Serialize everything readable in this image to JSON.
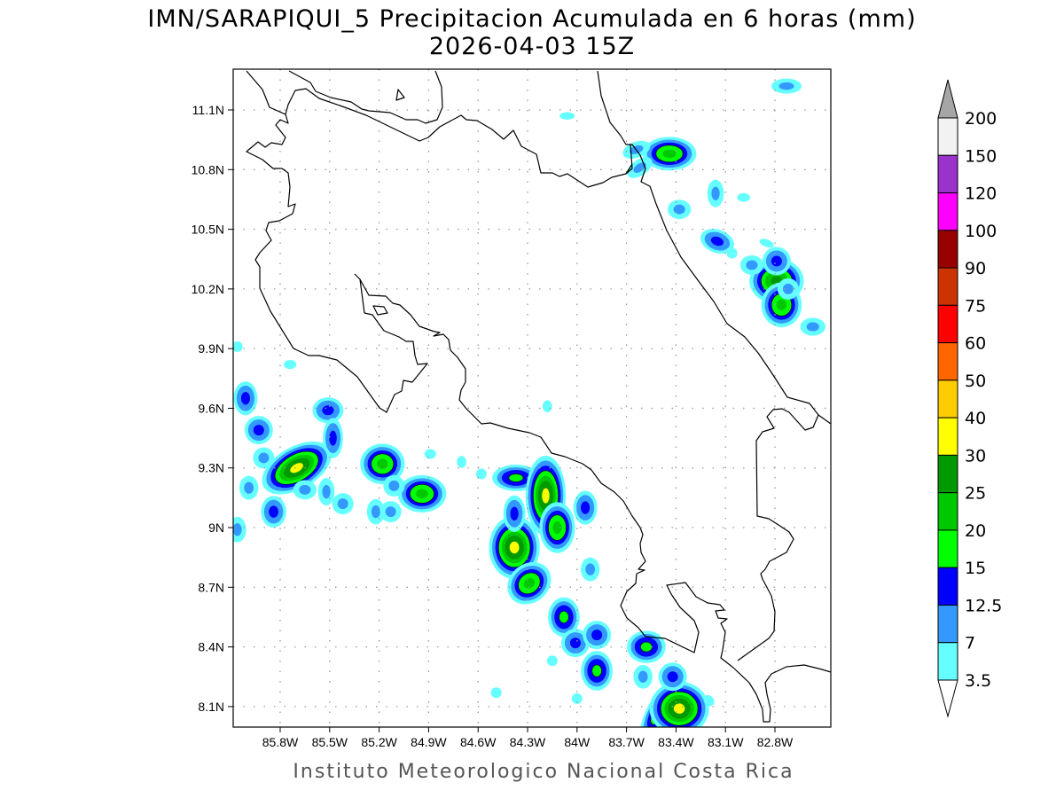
{
  "header": {
    "title": "IMN/SARAPIQUI_5 Precipitacion Acumulada en 6 horas (mm)",
    "subtitle": "2026-04-03 15Z"
  },
  "footer": {
    "credit": "Instituto Meteorologico Nacional Costa Rica"
  },
  "map": {
    "lon_range": [
      -86.1,
      -82.5
    ],
    "lat_range": [
      8.0,
      11.3
    ],
    "lon_ticks": [
      {
        "value": -85.8,
        "label": "85.8W"
      },
      {
        "value": -85.5,
        "label": "85.5W"
      },
      {
        "value": -85.2,
        "label": "85.2W"
      },
      {
        "value": -84.9,
        "label": "84.9W"
      },
      {
        "value": -84.6,
        "label": "84.6W"
      },
      {
        "value": -84.3,
        "label": "84.3W"
      },
      {
        "value": -84.0,
        "label": "84W"
      },
      {
        "value": -83.7,
        "label": "83.7W"
      },
      {
        "value": -83.4,
        "label": "83.4W"
      },
      {
        "value": -83.1,
        "label": "83.1W"
      },
      {
        "value": -82.8,
        "label": "82.8W"
      }
    ],
    "lat_ticks": [
      {
        "value": 11.1,
        "label": "11.1N"
      },
      {
        "value": 10.8,
        "label": "10.8N"
      },
      {
        "value": 10.5,
        "label": "10.5N"
      },
      {
        "value": 10.2,
        "label": "10.2N"
      },
      {
        "value": 9.9,
        "label": "9.9N"
      },
      {
        "value": 9.6,
        "label": "9.6N"
      },
      {
        "value": 9.3,
        "label": "9.3N"
      },
      {
        "value": 9.0,
        "label": "9N"
      },
      {
        "value": 8.7,
        "label": "8.7N"
      },
      {
        "value": 8.4,
        "label": "8.4N"
      },
      {
        "value": 8.1,
        "label": "8.1N"
      }
    ],
    "precip_cells": [
      {
        "lon": -85.7,
        "lat": 9.3,
        "level": 7,
        "elong": 1.8,
        "tilt": -30
      },
      {
        "lon": -85.18,
        "lat": 9.32,
        "level": 5,
        "elong": 1.1,
        "tilt": 0
      },
      {
        "lon": -84.94,
        "lat": 9.17,
        "level": 5,
        "elong": 1.3,
        "tilt": 0
      },
      {
        "lon": -84.37,
        "lat": 9.25,
        "level": 4,
        "elong": 1.8,
        "tilt": 0
      },
      {
        "lon": -84.19,
        "lat": 9.16,
        "level": 7,
        "elong": 0.5,
        "tilt": 0
      },
      {
        "lon": -84.38,
        "lat": 8.9,
        "level": 7,
        "elong": 0.8,
        "tilt": 0
      },
      {
        "lon": -84.29,
        "lat": 8.72,
        "level": 5,
        "elong": 1.2,
        "tilt": -40
      },
      {
        "lon": -84.38,
        "lat": 9.07,
        "level": 3,
        "elong": 0.6,
        "tilt": 0
      },
      {
        "lon": -84.12,
        "lat": 9.0,
        "level": 5,
        "elong": 0.7,
        "tilt": 0
      },
      {
        "lon": -83.95,
        "lat": 9.1,
        "level": 3,
        "elong": 0.7,
        "tilt": 0
      },
      {
        "lon": -84.08,
        "lat": 8.55,
        "level": 4,
        "elong": 0.8,
        "tilt": 0
      },
      {
        "lon": -84.01,
        "lat": 8.42,
        "level": 3,
        "elong": 1,
        "tilt": 0
      },
      {
        "lon": -83.88,
        "lat": 8.46,
        "level": 3,
        "elong": 1,
        "tilt": 0
      },
      {
        "lon": -83.88,
        "lat": 8.28,
        "level": 4,
        "elong": 0.8,
        "tilt": 0
      },
      {
        "lon": -83.92,
        "lat": 8.79,
        "level": 2,
        "elong": 0.8,
        "tilt": 0
      },
      {
        "lon": -83.58,
        "lat": 8.4,
        "level": 4,
        "elong": 1.2,
        "tilt": 0
      },
      {
        "lon": -83.49,
        "lat": 8.09,
        "level": 5,
        "elong": 0.35,
        "tilt": 30
      },
      {
        "lon": -83.38,
        "lat": 8.09,
        "level": 7,
        "elong": 1.1,
        "tilt": 0
      },
      {
        "lon": -83.42,
        "lat": 8.25,
        "level": 3,
        "elong": 1,
        "tilt": 0
      },
      {
        "lon": -83.6,
        "lat": 8.25,
        "level": 2,
        "elong": 0.8,
        "tilt": 0
      },
      {
        "lon": -83.2,
        "lat": 8.13,
        "level": 1,
        "elong": 0.8,
        "tilt": -40
      },
      {
        "lon": -86.01,
        "lat": 9.65,
        "level": 3,
        "elong": 0.7,
        "tilt": 0
      },
      {
        "lon": -85.93,
        "lat": 9.49,
        "level": 3,
        "elong": 1,
        "tilt": 0
      },
      {
        "lon": -85.99,
        "lat": 9.2,
        "level": 2,
        "elong": 0.8,
        "tilt": 0
      },
      {
        "lon": -85.84,
        "lat": 9.08,
        "level": 3,
        "elong": 0.8,
        "tilt": 0
      },
      {
        "lon": -86.06,
        "lat": 8.99,
        "level": 2,
        "elong": 0.7,
        "tilt": 0
      },
      {
        "lon": -85.51,
        "lat": 9.59,
        "level": 3,
        "elong": 1.2,
        "tilt": 0
      },
      {
        "lon": -85.48,
        "lat": 9.45,
        "level": 3,
        "elong": 0.5,
        "tilt": 0
      },
      {
        "lon": -85.52,
        "lat": 9.18,
        "level": 2,
        "elong": 0.6,
        "tilt": 0
      },
      {
        "lon": -85.42,
        "lat": 9.12,
        "level": 2,
        "elong": 1,
        "tilt": 0
      },
      {
        "lon": -85.65,
        "lat": 9.19,
        "level": 2,
        "elong": 1.2,
        "tilt": 0
      },
      {
        "lon": -85.9,
        "lat": 9.35,
        "level": 2,
        "elong": 1,
        "tilt": 0
      },
      {
        "lon": -85.11,
        "lat": 9.21,
        "level": 2,
        "elong": 1,
        "tilt": 0
      },
      {
        "lon": -85.22,
        "lat": 9.08,
        "level": 2,
        "elong": 0.7,
        "tilt": 0
      },
      {
        "lon": -85.13,
        "lat": 9.08,
        "level": 2,
        "elong": 1,
        "tilt": 0
      },
      {
        "lon": -84.7,
        "lat": 9.33,
        "level": 1,
        "elong": 0.8,
        "tilt": 0
      },
      {
        "lon": -84.89,
        "lat": 9.37,
        "level": 1,
        "elong": 1.2,
        "tilt": 0
      },
      {
        "lon": -83.44,
        "lat": 10.88,
        "level": 5,
        "elong": 1.6,
        "tilt": 0
      },
      {
        "lon": -83.64,
        "lat": 10.9,
        "level": 2,
        "elong": 1.8,
        "tilt": -20
      },
      {
        "lon": -83.62,
        "lat": 10.81,
        "level": 2,
        "elong": 1.8,
        "tilt": -35
      },
      {
        "lon": -83.15,
        "lat": 10.44,
        "level": 3,
        "elong": 1.5,
        "tilt": 20
      },
      {
        "lon": -82.79,
        "lat": 10.24,
        "level": 6,
        "elong": 1.2,
        "tilt": 0
      },
      {
        "lon": -82.76,
        "lat": 10.12,
        "level": 5,
        "elong": 0.9,
        "tilt": 0
      },
      {
        "lon": -82.79,
        "lat": 10.34,
        "level": 3,
        "elong": 1,
        "tilt": 0
      },
      {
        "lon": -82.73,
        "lat": 11.22,
        "level": 2,
        "elong": 2,
        "tilt": 0
      },
      {
        "lon": -84.06,
        "lat": 11.07,
        "level": 1,
        "elong": 2,
        "tilt": 0
      },
      {
        "lon": -83.38,
        "lat": 10.6,
        "level": 2,
        "elong": 1.2,
        "tilt": 0
      },
      {
        "lon": -83.16,
        "lat": 10.68,
        "level": 2,
        "elong": 0.6,
        "tilt": 0
      },
      {
        "lon": -82.94,
        "lat": 10.32,
        "level": 2,
        "elong": 1.2,
        "tilt": 0
      },
      {
        "lon": -82.85,
        "lat": 10.43,
        "level": 1,
        "elong": 2,
        "tilt": 20
      },
      {
        "lon": -82.57,
        "lat": 10.01,
        "level": 2,
        "elong": 1.4,
        "tilt": 0
      },
      {
        "lon": -82.72,
        "lat": 10.2,
        "level": 2,
        "elong": 1,
        "tilt": 0
      },
      {
        "lon": -82.99,
        "lat": 10.66,
        "level": 1,
        "elong": 1.5,
        "tilt": 0
      },
      {
        "lon": -83.06,
        "lat": 10.38,
        "level": 1,
        "elong": 1,
        "tilt": 0
      },
      {
        "lon": -86.06,
        "lat": 9.91,
        "level": 1,
        "elong": 1,
        "tilt": 0
      },
      {
        "lon": -85.74,
        "lat": 9.82,
        "level": 1,
        "elong": 1.4,
        "tilt": 0
      },
      {
        "lon": -84.18,
        "lat": 9.61,
        "level": 1,
        "elong": 0.8,
        "tilt": 0
      },
      {
        "lon": -84.58,
        "lat": 9.27,
        "level": 1,
        "elong": 1,
        "tilt": 0
      },
      {
        "lon": -84.49,
        "lat": 8.17,
        "level": 1,
        "elong": 1,
        "tilt": 0
      },
      {
        "lon": -84.15,
        "lat": 8.33,
        "level": 1,
        "elong": 1,
        "tilt": 0
      },
      {
        "lon": -84.0,
        "lat": 8.14,
        "level": 1,
        "elong": 1,
        "tilt": 0
      }
    ]
  },
  "colorbar": {
    "unit": "mm",
    "labels": [
      "200",
      "150",
      "120",
      "100",
      "90",
      "75",
      "60",
      "50",
      "40",
      "30",
      "25",
      "20",
      "15",
      "12.5",
      "7",
      "3.5"
    ],
    "colors_top_to_bottom": [
      "#f2f2f2",
      "#9933cc",
      "#ff00ff",
      "#990000",
      "#cc3300",
      "#ff0000",
      "#ff6600",
      "#ffcc00",
      "#ffff00",
      "#009900",
      "#00c800",
      "#00ff00",
      "#0000ff",
      "#3399ff",
      "#66ffff"
    ],
    "over_color": "#a6a6a6",
    "under_color": "#ffffff"
  },
  "levels_colors": [
    "#66ffff",
    "#3399ff",
    "#0000ff",
    "#00ff00",
    "#00c800",
    "#009900",
    "#ffff00"
  ]
}
